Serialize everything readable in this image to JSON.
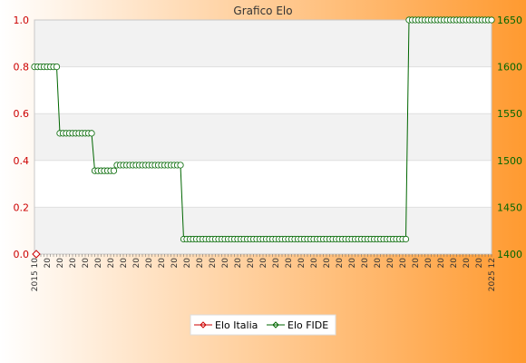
{
  "chart_data": {
    "type": "line",
    "title": "Grafico Elo",
    "left_axis": {
      "min": 0,
      "max": 1,
      "ticks": [
        "0.0",
        "0.2",
        "0.4",
        "0.6",
        "0.8",
        "1.0"
      ]
    },
    "right_axis": {
      "min": 1400,
      "max": 1650,
      "ticks": [
        "1400",
        "1450",
        "1500",
        "1550",
        "1600",
        "1650"
      ]
    },
    "first_x_label": "2015 10",
    "last_x_label": "2025 12",
    "x_label_prefix": "20",
    "legend": {
      "placement": "bottom-center"
    },
    "series": [
      {
        "name": "Elo Italia",
        "color": "#cc0000",
        "axis": "left",
        "values": [
          0
        ]
      },
      {
        "name": "Elo FIDE",
        "color": "#006600",
        "axis": "right",
        "segments": [
          {
            "value": 1600,
            "count": 8
          },
          {
            "value": 1529,
            "count": 11
          },
          {
            "value": 1489,
            "count": 7
          },
          {
            "value": 1495,
            "count": 21
          },
          {
            "value": 1416,
            "count": 71
          },
          {
            "value": 1650,
            "count": 27
          }
        ]
      }
    ]
  },
  "colors": {
    "grid_band": "#f2f2f2",
    "grid_line": "#e0e0e0",
    "bg_left": "#ffffff",
    "bg_right": "#ff9a30"
  }
}
